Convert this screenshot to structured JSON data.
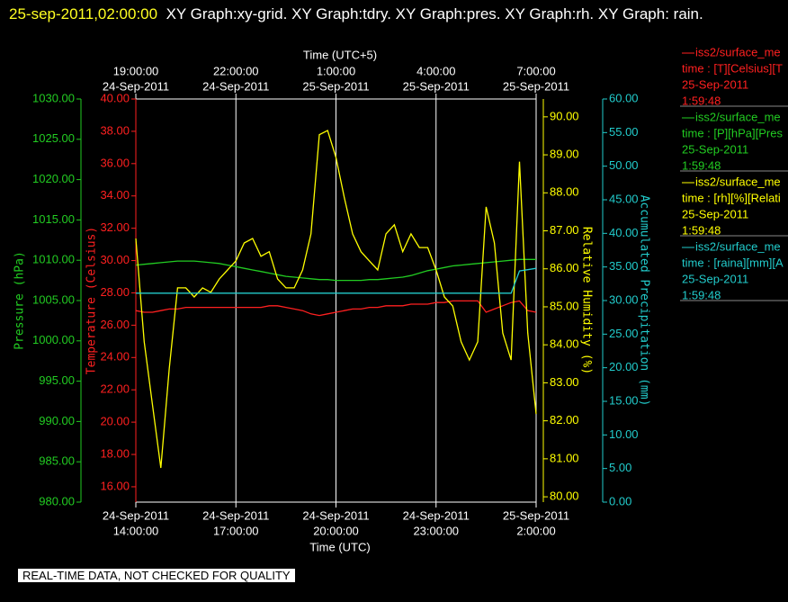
{
  "chart_data": {
    "type": "line",
    "title_time": "25-sep-2011,02:00:00",
    "title": "XY Graph:xy-grid.  XY Graph:tdry.  XY Graph:pres.  XY Graph:rh.  XY Graph: rain.",
    "xlabel": "Time (UTC)",
    "x2label": "Time (UTC+5)",
    "xlim": [
      14,
      26
    ],
    "xticks": [
      {
        "value": 14,
        "label": "14:00:00",
        "date": "24-Sep-2011"
      },
      {
        "value": 17,
        "label": "17:00:00",
        "date": "24-Sep-2011"
      },
      {
        "value": 20,
        "label": "20:00:00",
        "date": "24-Sep-2011"
      },
      {
        "value": 23,
        "label": "23:00:00",
        "date": "24-Sep-2011"
      },
      {
        "value": 26,
        "label": "2:00:00",
        "date": "25-Sep-2011"
      }
    ],
    "x2ticks": [
      {
        "value": 14,
        "label": "19:00:00",
        "date": "24-Sep-2011"
      },
      {
        "value": 17,
        "label": "22:00:00",
        "date": "24-Sep-2011"
      },
      {
        "value": 20,
        "label": "1:00:00",
        "date": "25-Sep-2011"
      },
      {
        "value": 23,
        "label": "4:00:00",
        "date": "25-Sep-2011"
      },
      {
        "value": 26,
        "label": "7:00:00",
        "date": "25-Sep-2011"
      }
    ],
    "grid": true,
    "x": [
      14,
      14.25,
      14.5,
      14.75,
      15,
      15.25,
      15.5,
      15.75,
      16,
      16.25,
      16.5,
      16.75,
      17,
      17.25,
      17.5,
      17.75,
      18,
      18.25,
      18.5,
      18.75,
      19,
      19.25,
      19.5,
      19.75,
      20,
      20.25,
      20.5,
      20.75,
      21,
      21.25,
      21.5,
      21.75,
      22,
      22.25,
      22.5,
      22.75,
      23,
      23.25,
      23.5,
      23.75,
      24,
      24.25,
      24.5,
      24.75,
      25,
      25.25,
      25.5,
      25.75,
      26
    ],
    "y_axes": [
      {
        "label": "Pressure (hPa)",
        "color": "#22cc22",
        "lim": [
          980,
          1030
        ],
        "ticks": [
          {
            "value": 980,
            "label": "980.00"
          },
          {
            "value": 985,
            "label": "985.00"
          },
          {
            "value": 990,
            "label": "990.00"
          },
          {
            "value": 995,
            "label": "995.00"
          },
          {
            "value": 1000,
            "label": "1000.00"
          },
          {
            "value": 1005,
            "label": "1005.00"
          },
          {
            "value": 1010,
            "label": "1010.00"
          },
          {
            "value": 1015,
            "label": "1015.00"
          },
          {
            "value": 1020,
            "label": "1020.00"
          },
          {
            "value": 1025,
            "label": "1025.00"
          },
          {
            "value": 1030,
            "label": "1030.00"
          }
        ]
      },
      {
        "label": "Temperature (Celsius)",
        "color": "#ff2020",
        "lim": [
          15.05,
          40
        ],
        "ticks": [
          {
            "value": 16,
            "label": "16.00"
          },
          {
            "value": 18,
            "label": "18.00"
          },
          {
            "value": 20,
            "label": "20.00"
          },
          {
            "value": 22,
            "label": "22.00"
          },
          {
            "value": 24,
            "label": "24.00"
          },
          {
            "value": 26,
            "label": "26.00"
          },
          {
            "value": 28,
            "label": "28.00"
          },
          {
            "value": 30,
            "label": "30.00"
          },
          {
            "value": 32,
            "label": "32.00"
          },
          {
            "value": 34,
            "label": "34.00"
          },
          {
            "value": 36,
            "label": "36.00"
          },
          {
            "value": 38,
            "label": "38.00"
          },
          {
            "value": 40,
            "label": "40.00"
          }
        ]
      },
      {
        "label": "Relative Humidity (%)",
        "color": "#ffff00",
        "lim": [
          79.86,
          90.47
        ],
        "ticks": [
          {
            "value": 80,
            "label": "80.00"
          },
          {
            "value": 81,
            "label": "81.00"
          },
          {
            "value": 82,
            "label": "82.00"
          },
          {
            "value": 83,
            "label": "83.00"
          },
          {
            "value": 84,
            "label": "84.00"
          },
          {
            "value": 85,
            "label": "85.00"
          },
          {
            "value": 86,
            "label": "86.00"
          },
          {
            "value": 87,
            "label": "87.00"
          },
          {
            "value": 88,
            "label": "88.00"
          },
          {
            "value": 89,
            "label": "89.00"
          },
          {
            "value": 90,
            "label": "90.00"
          }
        ]
      },
      {
        "label": "Accumulated Precipitation (mm)",
        "color": "#22cccc",
        "lim": [
          0,
          60
        ],
        "ticks": [
          {
            "value": 0,
            "label": "0.00"
          },
          {
            "value": 5,
            "label": "5.00"
          },
          {
            "value": 10,
            "label": "10.00"
          },
          {
            "value": 15,
            "label": "15.00"
          },
          {
            "value": 20,
            "label": "20.00"
          },
          {
            "value": 25,
            "label": "25.00"
          },
          {
            "value": 30,
            "label": "30.00"
          },
          {
            "value": 35,
            "label": "35.00"
          },
          {
            "value": 40,
            "label": "40.00"
          },
          {
            "value": 45,
            "label": "45.00"
          },
          {
            "value": 50,
            "label": "50.00"
          },
          {
            "value": 55,
            "label": "55.00"
          },
          {
            "value": 60,
            "label": "60.00"
          }
        ]
      }
    ],
    "series": [
      {
        "name": "iss2/surface_me",
        "legend_lines": [
          "time : [T][Celsius][T",
          "25-Sep-2011",
          "1:59:48"
        ],
        "color": "#ff2020",
        "axis": 1,
        "values": [
          26.9,
          26.8,
          26.8,
          26.9,
          27.0,
          27.0,
          27.1,
          27.1,
          27.1,
          27.1,
          27.1,
          27.1,
          27.1,
          27.1,
          27.1,
          27.1,
          27.2,
          27.2,
          27.1,
          27.0,
          26.9,
          26.7,
          26.6,
          26.7,
          26.8,
          26.9,
          27.0,
          27.0,
          27.1,
          27.1,
          27.2,
          27.2,
          27.2,
          27.3,
          27.3,
          27.3,
          27.4,
          27.4,
          27.5,
          27.5,
          27.5,
          27.5,
          26.8,
          27.0,
          27.2,
          27.4,
          27.5,
          26.9,
          26.8
        ]
      },
      {
        "name": "iss2/surface_me",
        "legend_lines": [
          "time : [P][hPa][Pres",
          "25-Sep-2011",
          "1:59:48"
        ],
        "color": "#22cc22",
        "axis": 0,
        "values": [
          1009.4,
          1009.5,
          1009.6,
          1009.7,
          1009.8,
          1009.9,
          1009.9,
          1009.9,
          1009.8,
          1009.7,
          1009.6,
          1009.4,
          1009.2,
          1009.0,
          1008.8,
          1008.6,
          1008.4,
          1008.2,
          1008.0,
          1007.9,
          1007.8,
          1007.7,
          1007.6,
          1007.6,
          1007.5,
          1007.5,
          1007.5,
          1007.5,
          1007.6,
          1007.6,
          1007.7,
          1007.8,
          1007.9,
          1008.1,
          1008.4,
          1008.7,
          1008.9,
          1009.1,
          1009.3,
          1009.4,
          1009.5,
          1009.6,
          1009.7,
          1009.8,
          1009.9,
          1010.0,
          1010.1,
          1010.1,
          1010.1
        ]
      },
      {
        "name": "iss2/surface_me",
        "legend_lines": [
          "time : [rh][%][Relati",
          "25-Sep-2011",
          "1:59:48"
        ],
        "color": "#ffff00",
        "axis": 2,
        "values": [
          86.8,
          84.08,
          82.42,
          80.76,
          83.36,
          85.5,
          85.5,
          85.26,
          85.5,
          85.38,
          85.73,
          85.97,
          86.21,
          86.68,
          86.8,
          86.33,
          86.45,
          85.73,
          85.5,
          85.5,
          85.97,
          86.92,
          89.53,
          89.64,
          88.93,
          87.87,
          86.92,
          86.45,
          86.21,
          85.97,
          86.92,
          87.16,
          86.45,
          86.92,
          86.56,
          86.56,
          85.97,
          85.26,
          85.02,
          84.08,
          83.6,
          84.08,
          87.63,
          86.68,
          84.31,
          83.6,
          88.82,
          84.31,
          82.18
        ]
      },
      {
        "name": "iss2/surface_me",
        "legend_lines": [
          "time : [raina][mm][A",
          "25-Sep-2011",
          "1:59:48"
        ],
        "color": "#22cccc",
        "axis": 3,
        "values": [
          31.1,
          31.1,
          31.1,
          31.1,
          31.1,
          31.1,
          31.1,
          31.1,
          31.1,
          31.1,
          31.1,
          31.1,
          31.1,
          31.1,
          31.1,
          31.1,
          31.1,
          31.1,
          31.1,
          31.1,
          31.1,
          31.1,
          31.1,
          31.1,
          31.1,
          31.1,
          31.1,
          31.1,
          31.1,
          31.1,
          31.1,
          31.1,
          31.1,
          31.1,
          31.1,
          31.1,
          31.1,
          31.1,
          31.1,
          31.1,
          31.1,
          31.1,
          31.1,
          31.1,
          31.1,
          31.1,
          34.4,
          34.6,
          34.8
        ]
      }
    ],
    "footer": "REAL-TIME DATA, NOT CHECKED FOR QUALITY"
  }
}
